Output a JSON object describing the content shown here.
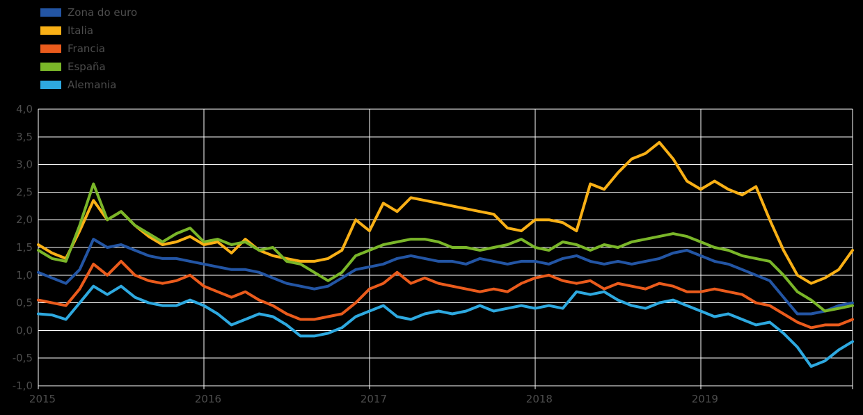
{
  "page": {
    "background": "#000000",
    "text_color": "#4D4D4D",
    "grid_color": "#FFFFFF"
  },
  "chart_data": {
    "type": "line",
    "title": "",
    "xlabel": "",
    "ylabel": "",
    "grid": true,
    "legend_position": "top-left",
    "points_per_year": 12,
    "x_tick_labels": [
      "2015",
      "2016",
      "2017",
      "2018",
      "2019"
    ],
    "x_tick_month_indices": [
      0,
      12,
      24,
      36,
      48
    ],
    "ylim": [
      -1.0,
      4.0
    ],
    "ytick_values": [
      4.0,
      3.5,
      3.0,
      2.5,
      2.0,
      1.5,
      1.0,
      0.5,
      0.0,
      -0.5,
      -1.0
    ],
    "ytick_labels": [
      "4,0",
      "3,5",
      "3,0",
      "2,5",
      "2,0",
      "1,5",
      "1,0",
      "0,5",
      "0,0",
      "-0,5",
      "-1,0"
    ],
    "series": [
      {
        "name": "Zona do euro",
        "color": "#2355A4",
        "values": [
          1.05,
          0.95,
          0.85,
          1.1,
          1.65,
          1.5,
          1.55,
          1.45,
          1.35,
          1.3,
          1.3,
          1.25,
          1.2,
          1.15,
          1.1,
          1.1,
          1.05,
          0.95,
          0.85,
          0.8,
          0.75,
          0.8,
          0.95,
          1.1,
          1.15,
          1.2,
          1.3,
          1.35,
          1.3,
          1.25,
          1.25,
          1.2,
          1.3,
          1.25,
          1.2,
          1.25,
          1.25,
          1.2,
          1.3,
          1.35,
          1.25,
          1.2,
          1.25,
          1.2,
          1.25,
          1.3,
          1.4,
          1.45,
          1.35,
          1.25,
          1.2,
          1.1,
          1.0,
          0.9,
          0.6,
          0.3,
          0.3,
          0.35,
          0.45,
          0.5
        ]
      },
      {
        "name": "Italia",
        "color": "#F9B016",
        "values": [
          1.55,
          1.4,
          1.3,
          1.8,
          2.35,
          2.0,
          2.15,
          1.9,
          1.7,
          1.55,
          1.6,
          1.7,
          1.55,
          1.6,
          1.4,
          1.65,
          1.45,
          1.35,
          1.3,
          1.25,
          1.25,
          1.3,
          1.45,
          2.0,
          1.8,
          2.3,
          2.15,
          2.4,
          2.35,
          2.3,
          2.25,
          2.2,
          2.15,
          2.1,
          1.85,
          1.8,
          2.0,
          2.0,
          1.95,
          1.8,
          2.65,
          2.55,
          2.85,
          3.1,
          3.2,
          3.4,
          3.1,
          2.7,
          2.55,
          2.7,
          2.55,
          2.45,
          2.6,
          2.0,
          1.45,
          1.0,
          0.85,
          0.95,
          1.1,
          1.45
        ]
      },
      {
        "name": "Francia",
        "color": "#EA5B1C",
        "values": [
          0.55,
          0.5,
          0.45,
          0.75,
          1.2,
          1.0,
          1.25,
          1.0,
          0.9,
          0.85,
          0.9,
          1.0,
          0.8,
          0.7,
          0.6,
          0.7,
          0.55,
          0.45,
          0.3,
          0.2,
          0.2,
          0.25,
          0.3,
          0.5,
          0.75,
          0.85,
          1.05,
          0.85,
          0.95,
          0.85,
          0.8,
          0.75,
          0.7,
          0.75,
          0.7,
          0.85,
          0.95,
          1.0,
          0.9,
          0.85,
          0.9,
          0.75,
          0.85,
          0.8,
          0.75,
          0.85,
          0.8,
          0.7,
          0.7,
          0.75,
          0.7,
          0.65,
          0.5,
          0.45,
          0.3,
          0.15,
          0.05,
          0.1,
          0.1,
          0.2
        ]
      },
      {
        "name": "España",
        "color": "#7AB629",
        "values": [
          1.45,
          1.3,
          1.25,
          1.9,
          2.65,
          2.0,
          2.15,
          1.9,
          1.75,
          1.6,
          1.75,
          1.85,
          1.6,
          1.65,
          1.55,
          1.6,
          1.45,
          1.5,
          1.25,
          1.2,
          1.05,
          0.9,
          1.05,
          1.35,
          1.45,
          1.55,
          1.6,
          1.65,
          1.65,
          1.6,
          1.5,
          1.5,
          1.45,
          1.5,
          1.55,
          1.65,
          1.5,
          1.45,
          1.6,
          1.55,
          1.45,
          1.55,
          1.5,
          1.6,
          1.65,
          1.7,
          1.75,
          1.7,
          1.6,
          1.5,
          1.45,
          1.35,
          1.3,
          1.25,
          1.0,
          0.7,
          0.55,
          0.35,
          0.4,
          0.45
        ]
      },
      {
        "name": "Alemania",
        "color": "#2EA9E0",
        "values": [
          0.3,
          0.28,
          0.2,
          0.5,
          0.8,
          0.65,
          0.8,
          0.6,
          0.5,
          0.45,
          0.45,
          0.55,
          0.45,
          0.3,
          0.1,
          0.2,
          0.3,
          0.25,
          0.1,
          -0.1,
          -0.1,
          -0.05,
          0.05,
          0.25,
          0.35,
          0.45,
          0.25,
          0.2,
          0.3,
          0.35,
          0.3,
          0.35,
          0.45,
          0.35,
          0.4,
          0.45,
          0.4,
          0.45,
          0.4,
          0.7,
          0.65,
          0.7,
          0.55,
          0.45,
          0.4,
          0.5,
          0.55,
          0.45,
          0.35,
          0.25,
          0.3,
          0.2,
          0.1,
          0.15,
          -0.05,
          -0.3,
          -0.65,
          -0.55,
          -0.35,
          -0.2
        ]
      }
    ]
  }
}
